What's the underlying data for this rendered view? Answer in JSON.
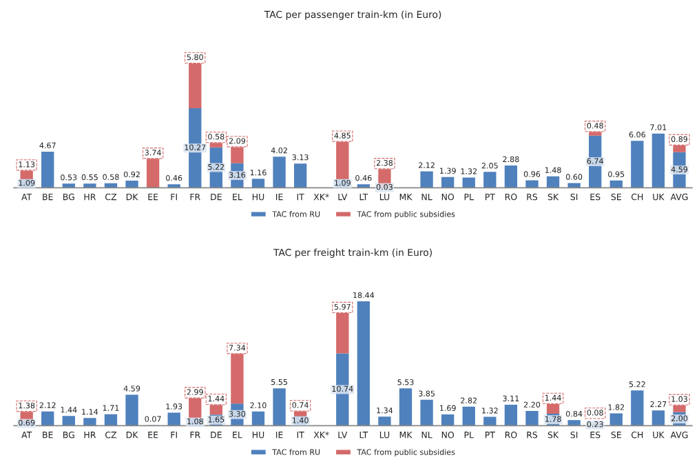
{
  "chart_data": [
    {
      "type": "bar",
      "title": "TAC per passenger train-km (in Euro)",
      "stacked": true,
      "legend": "bottom",
      "categories": [
        "AT",
        "BE",
        "BG",
        "HR",
        "CZ",
        "DK",
        "EE",
        "FI",
        "FR",
        "DE",
        "EL",
        "HU",
        "IE",
        "IT",
        "XK*",
        "LV",
        "LT",
        "LU",
        "MK",
        "NL",
        "NO",
        "PL",
        "PT",
        "RO",
        "RS",
        "SK",
        "SI",
        "ES",
        "SE",
        "CH",
        "UK",
        "AVG"
      ],
      "series": [
        {
          "name": "TAC from RU",
          "color": "#4f81bd",
          "values": [
            1.09,
            4.67,
            0.53,
            0.55,
            0.58,
            0.92,
            null,
            0.46,
            10.27,
            5.22,
            3.16,
            1.16,
            4.02,
            3.13,
            null,
            1.09,
            0.46,
            0.03,
            null,
            2.12,
            1.39,
            1.32,
            2.05,
            2.88,
            0.96,
            1.48,
            0.6,
            6.74,
            0.95,
            6.06,
            7.01,
            4.59
          ],
          "value_labels": [
            "1.09",
            "4.67",
            "0.53",
            "0.55",
            "0.58",
            "0.92",
            null,
            "0.46",
            "10.27",
            "5.22",
            "3.16",
            "1.16",
            "4.02",
            "3.13",
            null,
            "1.09",
            "0.46",
            "0.03",
            null,
            "2.12",
            "1.39",
            "1.32",
            "2.05",
            "2.88",
            "0.96",
            "1.48",
            "0.60",
            "6.74",
            "0.95",
            "6.06",
            "7.01",
            "4.59"
          ]
        },
        {
          "name": "TAC from public subsidies",
          "color": "#d46a6a",
          "values": [
            1.13,
            null,
            null,
            null,
            null,
            null,
            3.74,
            null,
            5.8,
            0.58,
            2.09,
            null,
            null,
            null,
            null,
            4.85,
            null,
            2.38,
            null,
            null,
            null,
            null,
            null,
            null,
            null,
            null,
            null,
            0.48,
            null,
            null,
            null,
            0.89
          ],
          "value_labels": [
            "1.13",
            null,
            null,
            null,
            null,
            null,
            "3.74",
            null,
            "5.80",
            "0.58",
            "2.09",
            null,
            null,
            null,
            null,
            "4.85",
            null,
            "2.38",
            null,
            null,
            null,
            null,
            null,
            null,
            null,
            null,
            null,
            "0.48",
            null,
            null,
            null,
            "0.89"
          ]
        }
      ]
    },
    {
      "type": "bar",
      "title": "TAC per freight train-km (in Euro)",
      "stacked": true,
      "legend": "bottom",
      "categories": [
        "AT",
        "BE",
        "BG",
        "HR",
        "CZ",
        "DK",
        "EE",
        "FI",
        "FR",
        "DE",
        "EL",
        "HU",
        "IE",
        "IT",
        "XK*",
        "LV",
        "LT",
        "LU",
        "MK",
        "NL",
        "NO",
        "PL",
        "PT",
        "RO",
        "RS",
        "SK",
        "SI",
        "ES",
        "SE",
        "CH",
        "UK",
        "AVG"
      ],
      "series": [
        {
          "name": "TAC from RU",
          "color": "#4f81bd",
          "values": [
            0.69,
            2.12,
            1.44,
            1.14,
            1.71,
            4.59,
            0.07,
            1.93,
            1.08,
            1.65,
            3.3,
            2.1,
            5.55,
            1.4,
            null,
            10.74,
            18.44,
            1.34,
            5.53,
            3.85,
            1.69,
            2.82,
            1.32,
            3.11,
            2.2,
            1.78,
            0.84,
            0.23,
            1.82,
            5.22,
            2.27,
            2.0
          ],
          "value_labels": [
            "0.69",
            "2.12",
            "1.44",
            "1.14",
            "1.71",
            "4.59",
            "0.07",
            "1.93",
            "1.08",
            "1.65",
            "3.30",
            "2.10",
            "5.55",
            "1.40",
            null,
            "10.74",
            "18.44",
            "1.34",
            "5.53",
            "3.85",
            "1.69",
            "2.82",
            "1.32",
            "3.11",
            "2.20",
            "1.78",
            "0.84",
            "0.23",
            "1.82",
            "5.22",
            "2.27",
            "2.00"
          ]
        },
        {
          "name": "TAC from public subsidies",
          "color": "#d46a6a",
          "values": [
            1.38,
            null,
            null,
            null,
            null,
            null,
            null,
            null,
            2.99,
            1.44,
            7.34,
            null,
            null,
            0.74,
            null,
            5.97,
            null,
            null,
            null,
            null,
            null,
            null,
            null,
            null,
            null,
            1.44,
            null,
            0.08,
            null,
            null,
            null,
            1.03
          ],
          "value_labels": [
            "1.38",
            null,
            null,
            null,
            null,
            null,
            null,
            null,
            "2.99",
            "1.44",
            "7.34",
            null,
            null,
            "0.74",
            null,
            "5.97",
            null,
            null,
            null,
            null,
            null,
            null,
            null,
            null,
            null,
            "1.44",
            null,
            "0.08",
            null,
            null,
            null,
            "1.03"
          ]
        }
      ]
    }
  ]
}
